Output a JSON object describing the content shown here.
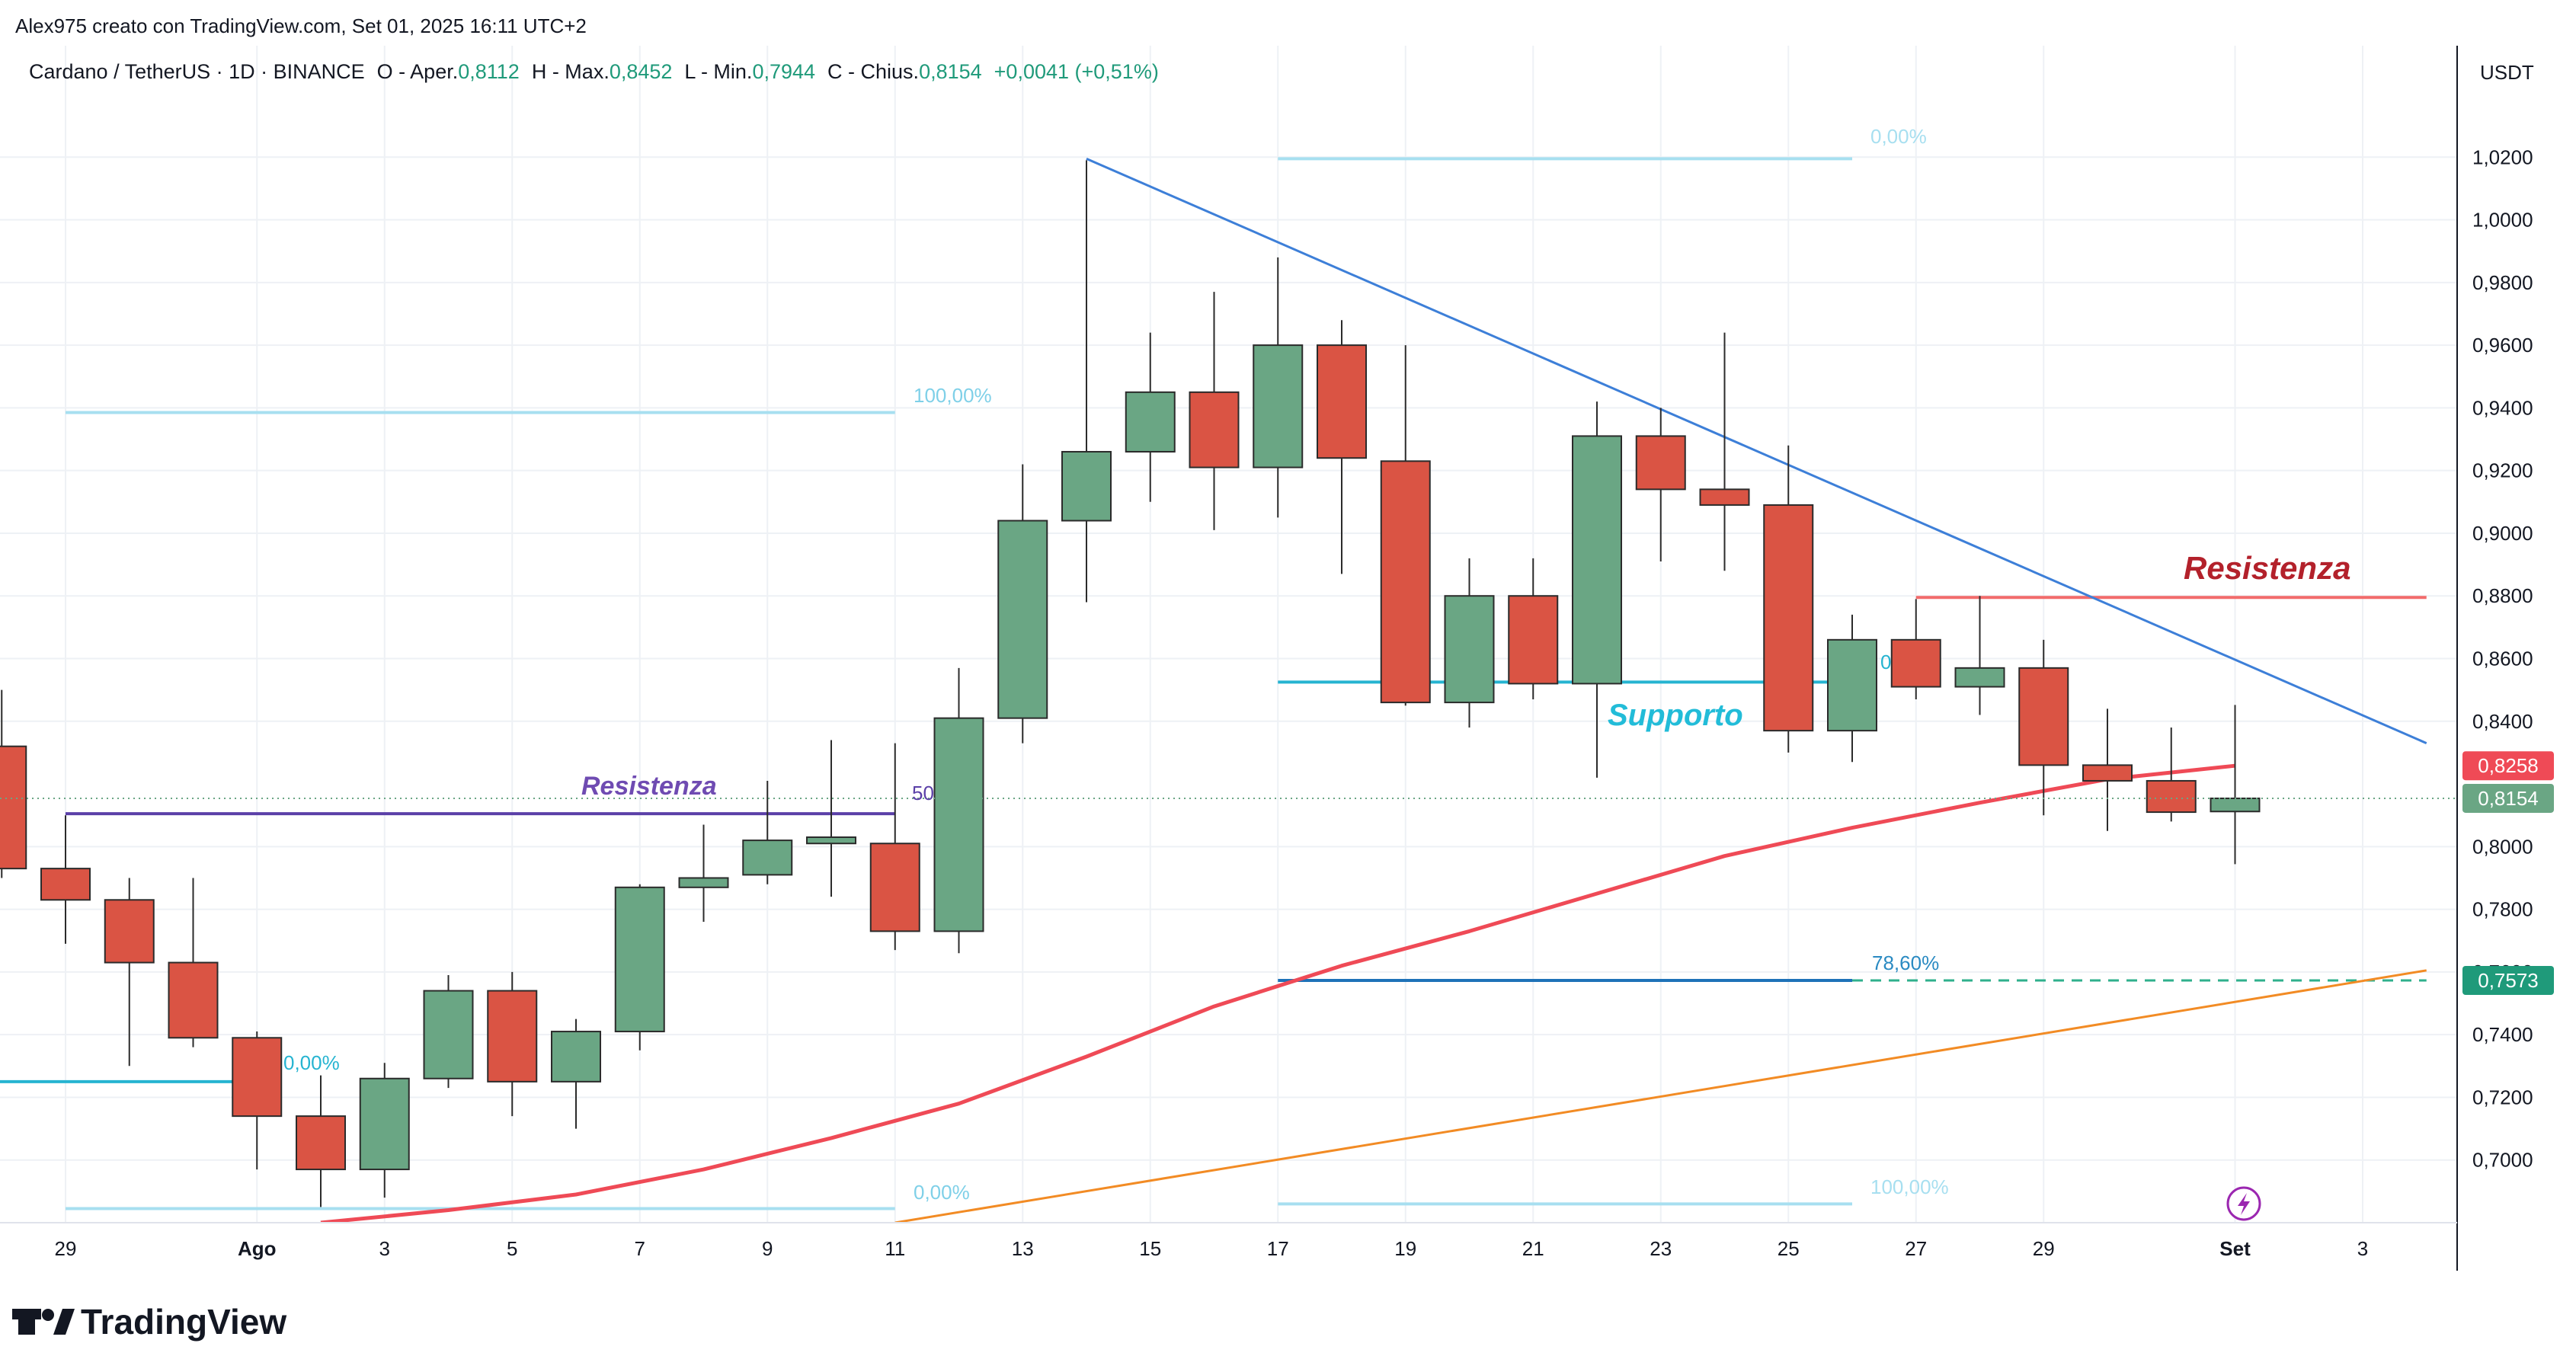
{
  "header": {
    "credit": "Alex975 creato con TradingView.com, Set 01, 2025 16:11 UTC+2"
  },
  "legend": {
    "symbol": "Cardano / TetherUS · 1D · BINANCE",
    "open_label": "O - Aper.",
    "open_value": "0,8112",
    "high_label": "H - Max.",
    "high_value": "0,8452",
    "low_label": "L - Min.",
    "low_value": "0,7944",
    "close_label": "C - Chius.",
    "close_value": "0,8154",
    "change": "+0,0041 (+0,51%)"
  },
  "price_axis": {
    "currency": "USDT",
    "current_price_label": "0,8154",
    "ma_price_label": "0,8258",
    "support_price_label": "0,7573",
    "tick_labels": [
      "0,7000",
      "0,7200",
      "0,7400",
      "0,7600",
      "0,7800",
      "0,8000",
      "0,8400",
      "0,8600",
      "0,8800",
      "0,9000",
      "0,9200",
      "0,9400",
      "0,9600",
      "0,9800",
      "1,0000",
      "1,0200"
    ]
  },
  "time_axis": {
    "labels": [
      "29",
      "Ago",
      "3",
      "5",
      "7",
      "9",
      "11",
      "13",
      "15",
      "17",
      "19",
      "21",
      "23",
      "25",
      "27",
      "29",
      "Set",
      "3"
    ]
  },
  "annotations": {
    "resistance_left": "Resistenza",
    "resistance_right": "Resistenza",
    "support": "Supporto"
  },
  "fib_labels": {
    "left_top": "100,00%",
    "left_bottom": "0,00%",
    "left_mid_fragment": "50",
    "left_low": "0,00%",
    "right_top": "0,00%",
    "right_618_fragment": "0",
    "right_786": "78,60%",
    "right_bottom": "100,00%"
  },
  "branding": {
    "logo_text": "TradingView"
  },
  "colors": {
    "up": "#6aa684",
    "down": "#da5444",
    "candle_border": "#2b2b2b",
    "ma": "#ef4a56",
    "trendline": "#3d7fd8",
    "ascending_line": "#f28b24",
    "resistance_left": "#5b40a8",
    "resistance_left_text": "#6f4bb2",
    "resistance_right": "#f26b6b",
    "resistance_right_text": "#b3212b",
    "support": "#26b4d1",
    "support_text": "#22bcd8",
    "fib_light": "#a7dff0",
    "fib_text": "#7fd0e8",
    "fib_786": "#1e72b8",
    "fib_786_text": "#2a8ac2",
    "support_dashed": "#2fb08c",
    "ma_badge": "#ef4a56",
    "price_badge": "#6aa684",
    "support_badge": "#1f9a7a",
    "grid": "#eef1f5",
    "axis": "#131722",
    "lightning": "#9b27b0"
  },
  "chart_data": {
    "type": "candlestick",
    "symbol": "Cardano / TetherUS",
    "interval": "1D",
    "exchange": "BINANCE",
    "ylim": [
      0.68,
      1.04
    ],
    "grid": true,
    "y_ticks": [
      0.7,
      0.72,
      0.74,
      0.76,
      0.78,
      0.8,
      0.84,
      0.86,
      0.88,
      0.9,
      0.92,
      0.94,
      0.96,
      0.98,
      1.0,
      1.02
    ],
    "x_tick_labels": [
      {
        "date": "2025-07-29",
        "label": "29"
      },
      {
        "date": "2025-08-01",
        "label": "Ago"
      },
      {
        "date": "2025-08-03",
        "label": "3"
      },
      {
        "date": "2025-08-05",
        "label": "5"
      },
      {
        "date": "2025-08-07",
        "label": "7"
      },
      {
        "date": "2025-08-09",
        "label": "9"
      },
      {
        "date": "2025-08-11",
        "label": "11"
      },
      {
        "date": "2025-08-13",
        "label": "13"
      },
      {
        "date": "2025-08-15",
        "label": "15"
      },
      {
        "date": "2025-08-17",
        "label": "17"
      },
      {
        "date": "2025-08-19",
        "label": "19"
      },
      {
        "date": "2025-08-21",
        "label": "21"
      },
      {
        "date": "2025-08-23",
        "label": "23"
      },
      {
        "date": "2025-08-25",
        "label": "25"
      },
      {
        "date": "2025-08-27",
        "label": "27"
      },
      {
        "date": "2025-08-29",
        "label": "29"
      },
      {
        "date": "2025-09-01",
        "label": "Set"
      },
      {
        "date": "2025-09-03",
        "label": "3"
      }
    ],
    "candles": [
      {
        "date": "2025-07-28",
        "o": 0.832,
        "h": 0.85,
        "l": 0.79,
        "c": 0.793
      },
      {
        "date": "2025-07-29",
        "o": 0.793,
        "h": 0.81,
        "l": 0.769,
        "c": 0.783
      },
      {
        "date": "2025-07-30",
        "o": 0.783,
        "h": 0.79,
        "l": 0.73,
        "c": 0.763
      },
      {
        "date": "2025-07-31",
        "o": 0.763,
        "h": 0.79,
        "l": 0.736,
        "c": 0.739
      },
      {
        "date": "2025-08-01",
        "o": 0.739,
        "h": 0.741,
        "l": 0.697,
        "c": 0.714
      },
      {
        "date": "2025-08-02",
        "o": 0.714,
        "h": 0.727,
        "l": 0.685,
        "c": 0.697
      },
      {
        "date": "2025-08-03",
        "o": 0.697,
        "h": 0.731,
        "l": 0.688,
        "c": 0.726
      },
      {
        "date": "2025-08-04",
        "o": 0.726,
        "h": 0.759,
        "l": 0.723,
        "c": 0.754
      },
      {
        "date": "2025-08-05",
        "o": 0.754,
        "h": 0.76,
        "l": 0.714,
        "c": 0.725
      },
      {
        "date": "2025-08-06",
        "o": 0.725,
        "h": 0.745,
        "l": 0.71,
        "c": 0.741
      },
      {
        "date": "2025-08-07",
        "o": 0.741,
        "h": 0.788,
        "l": 0.735,
        "c": 0.787
      },
      {
        "date": "2025-08-08",
        "o": 0.787,
        "h": 0.807,
        "l": 0.776,
        "c": 0.79
      },
      {
        "date": "2025-08-09",
        "o": 0.791,
        "h": 0.821,
        "l": 0.788,
        "c": 0.802
      },
      {
        "date": "2025-08-10",
        "o": 0.801,
        "h": 0.834,
        "l": 0.784,
        "c": 0.803
      },
      {
        "date": "2025-08-11",
        "o": 0.801,
        "h": 0.833,
        "l": 0.767,
        "c": 0.773
      },
      {
        "date": "2025-08-12",
        "o": 0.773,
        "h": 0.857,
        "l": 0.766,
        "c": 0.841
      },
      {
        "date": "2025-08-13",
        "o": 0.841,
        "h": 0.922,
        "l": 0.833,
        "c": 0.904
      },
      {
        "date": "2025-08-14",
        "o": 0.904,
        "h": 1.019,
        "l": 0.878,
        "c": 0.926
      },
      {
        "date": "2025-08-15",
        "o": 0.926,
        "h": 0.964,
        "l": 0.91,
        "c": 0.945
      },
      {
        "date": "2025-08-16",
        "o": 0.945,
        "h": 0.977,
        "l": 0.901,
        "c": 0.921
      },
      {
        "date": "2025-08-17",
        "o": 0.921,
        "h": 0.988,
        "l": 0.905,
        "c": 0.96
      },
      {
        "date": "2025-08-18",
        "o": 0.96,
        "h": 0.968,
        "l": 0.887,
        "c": 0.924
      },
      {
        "date": "2025-08-19",
        "o": 0.923,
        "h": 0.96,
        "l": 0.845,
        "c": 0.846
      },
      {
        "date": "2025-08-20",
        "o": 0.846,
        "h": 0.892,
        "l": 0.838,
        "c": 0.88
      },
      {
        "date": "2025-08-21",
        "o": 0.88,
        "h": 0.892,
        "l": 0.847,
        "c": 0.852
      },
      {
        "date": "2025-08-22",
        "o": 0.852,
        "h": 0.942,
        "l": 0.822,
        "c": 0.931
      },
      {
        "date": "2025-08-23",
        "o": 0.931,
        "h": 0.94,
        "l": 0.891,
        "c": 0.914
      },
      {
        "date": "2025-08-24",
        "o": 0.914,
        "h": 0.964,
        "l": 0.888,
        "c": 0.909
      },
      {
        "date": "2025-08-25",
        "o": 0.909,
        "h": 0.928,
        "l": 0.83,
        "c": 0.837
      },
      {
        "date": "2025-08-26",
        "o": 0.837,
        "h": 0.874,
        "l": 0.827,
        "c": 0.866
      },
      {
        "date": "2025-08-27",
        "o": 0.866,
        "h": 0.879,
        "l": 0.847,
        "c": 0.851
      },
      {
        "date": "2025-08-28",
        "o": 0.851,
        "h": 0.88,
        "l": 0.842,
        "c": 0.857
      },
      {
        "date": "2025-08-29",
        "o": 0.857,
        "h": 0.866,
        "l": 0.81,
        "c": 0.826
      },
      {
        "date": "2025-08-30",
        "o": 0.826,
        "h": 0.844,
        "l": 0.805,
        "c": 0.821
      },
      {
        "date": "2025-08-31",
        "o": 0.821,
        "h": 0.838,
        "l": 0.808,
        "c": 0.811
      },
      {
        "date": "2025-09-01",
        "o": 0.8112,
        "h": 0.8452,
        "l": 0.7944,
        "c": 0.8154
      }
    ],
    "moving_average": [
      {
        "date": "2025-08-02",
        "v": 0.68
      },
      {
        "date": "2025-08-04",
        "v": 0.684
      },
      {
        "date": "2025-08-06",
        "v": 0.689
      },
      {
        "date": "2025-08-08",
        "v": 0.697
      },
      {
        "date": "2025-08-10",
        "v": 0.707
      },
      {
        "date": "2025-08-12",
        "v": 0.718
      },
      {
        "date": "2025-08-14",
        "v": 0.733
      },
      {
        "date": "2025-08-16",
        "v": 0.749
      },
      {
        "date": "2025-08-18",
        "v": 0.762
      },
      {
        "date": "2025-08-20",
        "v": 0.773
      },
      {
        "date": "2025-08-22",
        "v": 0.785
      },
      {
        "date": "2025-08-24",
        "v": 0.797
      },
      {
        "date": "2025-08-26",
        "v": 0.806
      },
      {
        "date": "2025-08-28",
        "v": 0.814
      },
      {
        "date": "2025-08-30",
        "v": 0.8215
      },
      {
        "date": "2025-09-01",
        "v": 0.8258
      }
    ],
    "trendlines": [
      {
        "name": "descending",
        "start": {
          "date": "2025-08-14",
          "v": 1.0195
        },
        "end": {
          "date": "2025-09-04",
          "v": 0.833
        }
      },
      {
        "name": "ascending",
        "start": {
          "date": "2025-08-11",
          "v": 0.68
        },
        "end": {
          "date": "2025-09-04",
          "v": 0.7605
        }
      }
    ],
    "horizontal_levels": [
      {
        "name": "resistance-left",
        "v": 0.8105,
        "from": "2025-07-29",
        "to": "2025-08-11"
      },
      {
        "name": "resistance-right",
        "v": 0.8795,
        "from": "2025-08-27",
        "to": "2025-09-04"
      },
      {
        "name": "support",
        "v": 0.8525,
        "from": "2025-08-17",
        "to": "2025-08-26"
      },
      {
        "name": "fib-left-100",
        "v": 0.9385,
        "from": "2025-07-29",
        "to": "2025-08-11"
      },
      {
        "name": "fib-left-0",
        "v": 0.6845,
        "from": "2025-07-29",
        "to": "2025-08-11"
      },
      {
        "name": "fib-left-low",
        "v": 0.725,
        "from": "2025-07-27",
        "to": "2025-08-01"
      },
      {
        "name": "fib-right-0",
        "v": 1.0195,
        "from": "2025-08-17",
        "to": "2025-08-26"
      },
      {
        "name": "fib-right-786",
        "v": 0.7573,
        "from": "2025-08-17",
        "to": "2025-08-26"
      },
      {
        "name": "fib-right-100",
        "v": 0.686,
        "from": "2025-08-17",
        "to": "2025-08-26"
      },
      {
        "name": "support-extension",
        "v": 0.7573,
        "from": "2025-08-26",
        "to": "2025-09-04"
      }
    ],
    "last_price": 0.8154,
    "ma_last": 0.8258,
    "support_level": 0.7573
  }
}
